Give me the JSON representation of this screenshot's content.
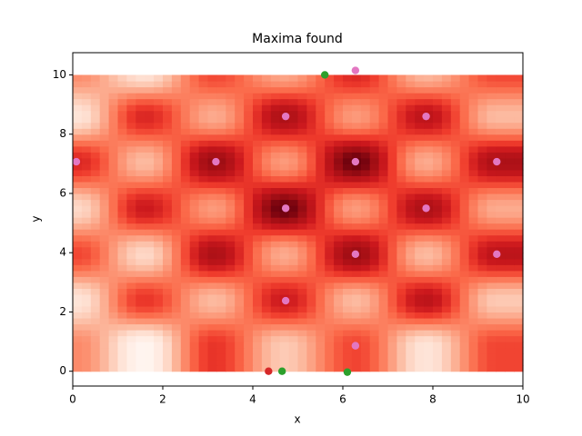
{
  "chart_data": {
    "type": "heatmap-scatter",
    "title": "Maxima found",
    "x_label": "x",
    "y_label": "y",
    "xlim": [
      0,
      10
    ],
    "ylim": [
      -0.5,
      10.75
    ],
    "xticks": [
      0,
      2,
      4,
      6,
      8,
      10
    ],
    "yticks": [
      0,
      2,
      4,
      6,
      8,
      10
    ],
    "colormap": "Reds",
    "extent": [
      0,
      10,
      0,
      10
    ],
    "heatmap": {
      "x": [
        0.1,
        1.6,
        3.15,
        4.7,
        6.28,
        7.85,
        9.42
      ],
      "y": [
        0.86,
        2.4,
        3.95,
        5.5,
        7.07,
        8.6,
        10.1
      ],
      "z": [
        [
          0.4,
          0.0,
          0.65,
          0.2,
          0.6,
          0.1,
          0.6
        ],
        [
          0.1,
          0.65,
          0.25,
          0.75,
          0.25,
          0.8,
          0.2
        ],
        [
          0.6,
          0.15,
          0.85,
          0.3,
          0.9,
          0.25,
          0.8
        ],
        [
          0.15,
          0.75,
          0.35,
          1.0,
          0.35,
          0.85,
          0.3
        ],
        [
          0.7,
          0.25,
          0.9,
          0.35,
          1.0,
          0.3,
          0.85
        ],
        [
          0.1,
          0.7,
          0.3,
          0.85,
          0.35,
          0.8,
          0.25
        ],
        [
          0.4,
          0.1,
          0.6,
          0.3,
          0.7,
          0.25,
          0.6
        ]
      ]
    },
    "series": [
      {
        "color": "#d62728",
        "x": [
          4.35
        ],
        "values": [
          0.0
        ]
      },
      {
        "color": "#2ca02c",
        "x": [
          5.6,
          4.65,
          6.1
        ],
        "values": [
          10.0,
          0.0,
          -0.03
        ]
      },
      {
        "color": "#e377c2",
        "x": [
          0.08,
          3.18,
          4.73,
          4.73,
          4.73,
          6.28,
          6.28,
          6.28,
          7.85,
          7.85,
          9.42,
          9.42,
          6.28
        ],
        "values": [
          7.07,
          7.07,
          8.6,
          5.5,
          2.38,
          7.07,
          3.95,
          0.86,
          8.6,
          5.5,
          7.07,
          3.95,
          10.15
        ]
      }
    ]
  }
}
